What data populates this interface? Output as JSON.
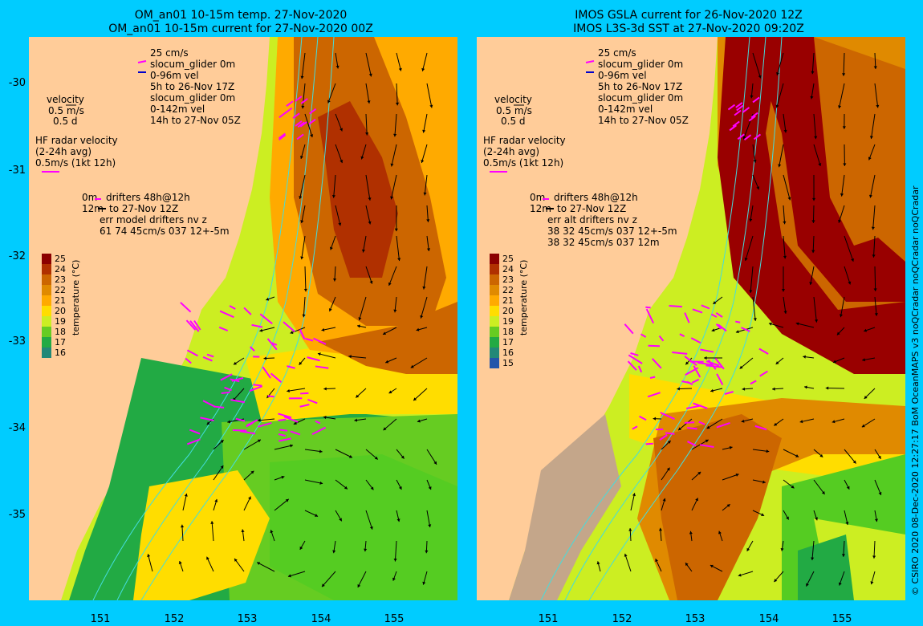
{
  "left": {
    "title1": "OM_an01 10-15m temp. 27-Nov-2020",
    "title2": "OM_an01 10-15m current for 27-Nov-2020 00Z",
    "legend": {
      "scale": "25 cm/s",
      "glider1": "slocum_glider 0m",
      "glider1_vel": "0-96m vel",
      "glider1_time": "5h to 26-Nov 17Z",
      "glider2": "slocum_glider 0m",
      "glider2_vel": "0-142m vel",
      "glider2_time": "14h to 27-Nov 05Z",
      "velocity": "velocity",
      "vel_ms": "0.5 m/s",
      "vel_d": "0.5 d",
      "hf1": "HF radar velocity",
      "hf2": "(2-24h avg)",
      "hf3": "0.5m/s (1kt 12h)",
      "drift0": "0m",
      "drift_label": "drifters 48h@12h",
      "drift12": "12m",
      "drift_to": "to 27-Nov 12Z",
      "err1": "err model drifters nv z",
      "err2": "61 74 45cm/s 037 12+-5m"
    },
    "cbar_ticks": [
      "25",
      "24",
      "23",
      "22",
      "21",
      "20",
      "19",
      "18",
      "17",
      "16"
    ],
    "cbar_label": "temperature (°C)"
  },
  "right": {
    "title1": "IMOS GSLA current for 26-Nov-2020 12Z",
    "title2": "IMOS L3S-3d SST at 27-Nov-2020 09:20Z",
    "legend": {
      "scale": "25 cm/s",
      "glider1": "slocum_glider 0m",
      "glider1_vel": "0-96m vel",
      "glider1_time": "5h to 26-Nov 17Z",
      "glider2": "slocum_glider 0m",
      "glider2_vel": "0-142m vel",
      "glider2_time": "14h to 27-Nov 05Z",
      "velocity": "velocity",
      "vel_ms": "0.5 m/s",
      "vel_d": "0.5 d",
      "hf1": "HF radar velocity",
      "hf2": "(2-24h avg)",
      "hf3": "0.5m/s (1kt 12h)",
      "drift0": "0m",
      "drift_label": "drifters 48h@12h",
      "drift12": "12m",
      "drift_to": "to 27-Nov 12Z",
      "err1": "err alt drifters nv z",
      "err2": "38 32 45cm/s 037 12+-5m",
      "err3": "38 32 45cm/s 037 12m"
    },
    "cbar_ticks": [
      "25",
      "24",
      "23",
      "22",
      "21",
      "20",
      "19",
      "18",
      "17",
      "16",
      "15"
    ],
    "cbar_label": "temperature (°C)"
  },
  "yticks": [
    "-30",
    "-31",
    "-32",
    "-33",
    "-34",
    "-35"
  ],
  "xticks": [
    "151",
    "152",
    "153",
    "154",
    "155"
  ],
  "credit": "© CSIRO 2020   08-Dec-2020 12:27:17 BoM OceanMAPS v3 noQCradar noQCradar noQCradar",
  "colors": {
    "frame": "#00ccff",
    "land": "#ffcc99",
    "warm": "#cc6600",
    "hot": "#990000",
    "mid": "#ffaa00",
    "yellow": "#ffdd00",
    "lime": "#ccee22",
    "green": "#55cc22",
    "cloud": "#c4a68a",
    "hf": "#ff00ff",
    "glider": "#0000cc",
    "isobath": "#44dddd"
  },
  "colormap": [
    "#8b0000",
    "#b03000",
    "#cc6600",
    "#e08a00",
    "#ffaa00",
    "#ffdd00",
    "#ccee22",
    "#66cc22",
    "#22aa44",
    "#228877",
    "#2255aa",
    "#1a2a99",
    "#000066"
  ]
}
